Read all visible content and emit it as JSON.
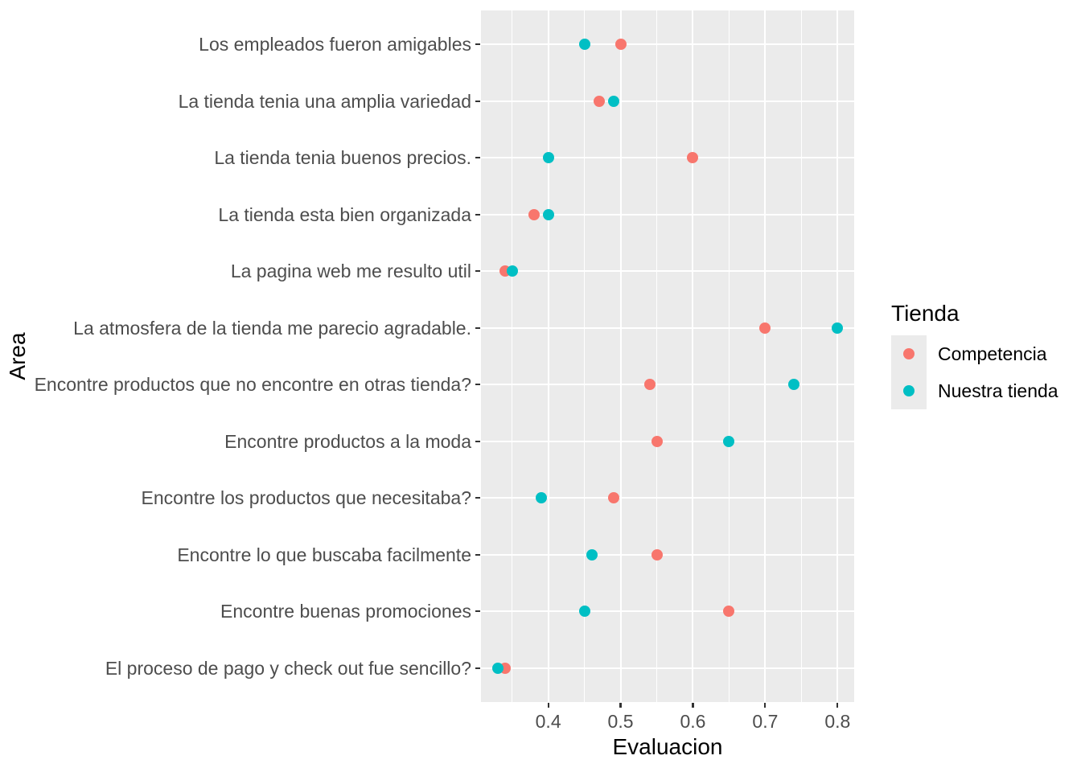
{
  "figure": {
    "background": "#FFFFFF",
    "panel_bg": "#EBEBEB",
    "grid_color": "#FFFFFF",
    "tick_color": "#333333",
    "axis_text_color": "#4D4D4D",
    "title_color": "#000000"
  },
  "chart_data": {
    "type": "scatter",
    "subtype": "cleveland-dot-plot",
    "title": "",
    "xlabel": "Evaluacion",
    "ylabel": "Area",
    "xlim": [
      0.307,
      0.823
    ],
    "grid": true,
    "x_major_ticks": [
      0.4,
      0.5,
      0.6,
      0.7,
      0.8
    ],
    "x_major_tick_labels": [
      "0.4",
      "0.5",
      "0.6",
      "0.7",
      "0.8"
    ],
    "x_minor_ticks": [
      0.35,
      0.45,
      0.55,
      0.65,
      0.75
    ],
    "categories_top_to_bottom": [
      "Los empleados fueron amigables",
      "La tienda tenia una amplia variedad",
      "La tienda tenia buenos precios.",
      "La tienda esta bien organizada",
      "La pagina web me resulto util",
      "La atmosfera de la tienda me parecio agradable.",
      "Encontre productos que no encontre en otras tienda?",
      "Encontre productos a la moda",
      "Encontre los productos que necesitaba?",
      "Encontre lo que buscaba facilmente",
      "Encontre buenas promociones",
      "El proceso de pago y check out fue sencillo?"
    ],
    "series": [
      {
        "name": "Competencia",
        "color": "#F8766D",
        "values": [
          0.5,
          0.47,
          0.6,
          0.38,
          0.34,
          0.7,
          0.54,
          0.55,
          0.49,
          0.55,
          0.65,
          0.34
        ]
      },
      {
        "name": "Nuestra tienda",
        "color": "#00BFC4",
        "values": [
          0.45,
          0.49,
          0.4,
          0.4,
          0.35,
          0.8,
          0.74,
          0.65,
          0.39,
          0.46,
          0.45,
          0.33
        ]
      }
    ],
    "legend": {
      "title": "Tienda",
      "position": "right"
    }
  }
}
